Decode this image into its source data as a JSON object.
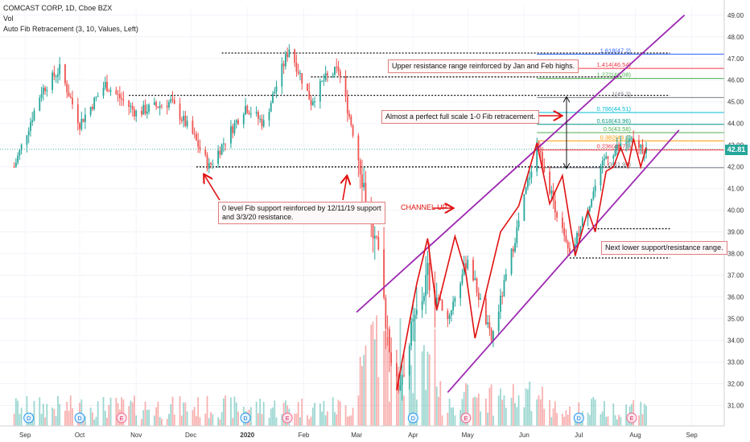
{
  "header": {
    "symbol_line": "COMCAST CORP, 1D, Cboe BZX",
    "vol_label": "Vol",
    "indicator_label": "Auto Fib Retracement (3, 10, Values, Left)"
  },
  "notes": {
    "upper_resistance": "Upper resistance range reinforced by Jan and Feb highs.",
    "fib_retracement": "Almost a perfect full scale 1-0 Fib retracement.",
    "zero_level": "0 level Fib support reinforced by 12/11/19 support and 3/3/20 resistance.",
    "channel_up": "CHANNEL UP",
    "lower_support": "Next lower support/resistance range."
  },
  "current_price": "42.81",
  "colors": {
    "up": "#26a69a",
    "down": "#ef5350",
    "channel": "#9c27b0",
    "annotation": "#e01010",
    "price_badge": "#26a69a"
  },
  "chart_data": {
    "type": "candlestick",
    "x_ticks": [
      "Sep",
      "Oct",
      "Nov",
      "Dec",
      "2020",
      "Feb",
      "Mar",
      "Apr",
      "May",
      "Jun",
      "Jul",
      "Aug",
      "Sep"
    ],
    "y_ticks": [
      "31.00",
      "32.00",
      "33.00",
      "34.00",
      "35.00",
      "36.00",
      "37.00",
      "38.00",
      "39.00",
      "40.00",
      "41.00",
      "42.00",
      "43.00",
      "44.00",
      "45.00",
      "46.00",
      "47.00",
      "48.00",
      "49.00"
    ],
    "ylim": [
      30.5,
      49.4
    ],
    "price_path": [
      [
        "2019-08-26",
        42.0
      ],
      [
        "2019-09-10",
        45.5
      ],
      [
        "2019-09-20",
        46.5
      ],
      [
        "2019-10-01",
        44.0
      ],
      [
        "2019-10-15",
        45.8
      ],
      [
        "2019-11-01",
        44.5
      ],
      [
        "2019-11-20",
        45.0
      ],
      [
        "2019-12-02",
        43.5
      ],
      [
        "2019-12-11",
        42.0
      ],
      [
        "2019-12-31",
        44.8
      ],
      [
        "2020-01-10",
        44.0
      ],
      [
        "2020-01-24",
        47.5
      ],
      [
        "2020-02-05",
        45.0
      ],
      [
        "2020-02-12",
        46.0
      ],
      [
        "2020-02-20",
        46.5
      ],
      [
        "2020-03-03",
        42.2
      ],
      [
        "2020-03-12",
        38.0
      ],
      [
        "2020-03-23",
        31.7
      ],
      [
        "2020-04-09",
        37.0
      ],
      [
        "2020-04-20",
        35.0
      ],
      [
        "2020-05-01",
        37.8
      ],
      [
        "2020-05-14",
        34.0
      ],
      [
        "2020-06-08",
        43.1
      ],
      [
        "2020-06-26",
        37.8
      ],
      [
        "2020-07-16",
        42.5
      ],
      [
        "2020-07-28",
        43.2
      ],
      [
        "2020-08-07",
        42.8
      ]
    ],
    "fib_levels": [
      {
        "ratio": "0",
        "value": 41.96,
        "label": "0(41.96)",
        "color": "#787b86"
      },
      {
        "ratio": "0.236",
        "value": 42.78,
        "label": "0.236(42.78)",
        "color": "#f23645"
      },
      {
        "ratio": "0.382",
        "value": 43.2,
        "label": "0.382(43.2)",
        "color": "#ff9800"
      },
      {
        "ratio": "0.5",
        "value": 43.58,
        "label": "0.5(43.58)",
        "color": "#4caf50"
      },
      {
        "ratio": "0.618",
        "value": 43.96,
        "label": "0.618(43.96)",
        "color": "#089981"
      },
      {
        "ratio": "0.786",
        "value": 44.51,
        "label": "0.786(44.51)",
        "color": "#00bcd4"
      },
      {
        "ratio": "1",
        "value": 45.2,
        "label": "1(45.2)",
        "color": "#787b86"
      },
      {
        "ratio": "1.272",
        "value": 46.08,
        "label": "1.272(46.08)",
        "color": "#4caf50"
      },
      {
        "ratio": "1.414",
        "value": 46.54,
        "label": "1.414(46.54)",
        "color": "#f23645"
      },
      {
        "ratio": "1.618",
        "value": 47.2,
        "label": "1.618(47.2)",
        "color": "#2962ff"
      }
    ],
    "support_lines": [
      {
        "value": 47.25,
        "from": "2019-12-18",
        "to": "2020-08-20"
      },
      {
        "value": 46.15,
        "from": "2020-02-05",
        "to": "2020-07-25"
      },
      {
        "value": 45.3,
        "from": "2019-10-28",
        "to": "2020-08-20"
      },
      {
        "value": 42.0,
        "from": "2019-12-04",
        "to": "2020-07-28"
      },
      {
        "value": 39.15,
        "from": "2020-07-06",
        "to": "2020-08-20"
      },
      {
        "value": 37.8,
        "from": "2020-06-26",
        "to": "2020-08-20"
      }
    ],
    "channel": {
      "upper": [
        [
          "2020-03-01",
          35.3
        ],
        [
          "2020-08-28",
          49.0
        ]
      ],
      "lower": [
        [
          "2020-04-20",
          31.6
        ],
        [
          "2020-08-25",
          43.7
        ]
      ]
    },
    "zigzag": [
      [
        "2020-03-23",
        31.7
      ],
      [
        "2020-04-03",
        36.6
      ],
      [
        "2020-04-09",
        38.7
      ],
      [
        "2020-04-14",
        35.4
      ],
      [
        "2020-04-24",
        38.8
      ],
      [
        "2020-04-30",
        37.1
      ],
      [
        "2020-05-05",
        34.1
      ],
      [
        "2020-05-19",
        39.0
      ],
      [
        "2020-05-29",
        40.2
      ],
      [
        "2020-06-08",
        43.1
      ],
      [
        "2020-06-15",
        40.3
      ],
      [
        "2020-06-22",
        41.6
      ],
      [
        "2020-06-29",
        37.9
      ],
      [
        "2020-07-06",
        40.0
      ],
      [
        "2020-07-10",
        39.0
      ],
      [
        "2020-07-16",
        41.8
      ],
      [
        "2020-07-20",
        42.0
      ],
      [
        "2020-07-24",
        42.9
      ],
      [
        "2020-07-28",
        42.0
      ],
      [
        "2020-07-31",
        43.3
      ],
      [
        "2020-08-04",
        42.0
      ],
      [
        "2020-08-07",
        42.9
      ]
    ],
    "event_markers": [
      {
        "date": "2019-09-03",
        "kind": "D"
      },
      {
        "date": "2019-10-01",
        "kind": "D"
      },
      {
        "date": "2019-10-24",
        "kind": "E"
      },
      {
        "date": "2019-12-31",
        "kind": "D"
      },
      {
        "date": "2020-01-23",
        "kind": "E"
      },
      {
        "date": "2020-04-01",
        "kind": "D"
      },
      {
        "date": "2020-04-30",
        "kind": "E"
      },
      {
        "date": "2020-07-01",
        "kind": "D"
      },
      {
        "date": "2020-07-30",
        "kind": "E"
      }
    ]
  }
}
